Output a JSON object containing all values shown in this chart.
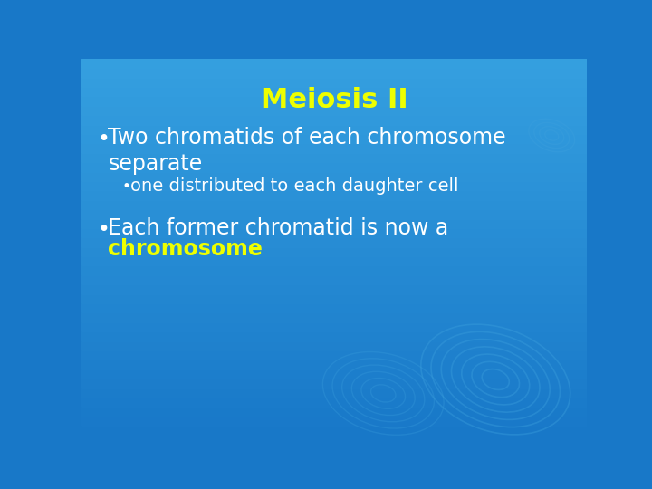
{
  "title": "Meiosis II",
  "title_color": "#EEFF00",
  "title_fontsize": 22,
  "title_fontweight": "bold",
  "bg_color": "#1878C8",
  "bg_color_top": "#1878C8",
  "bg_color_bottom": "#3399DD",
  "bullet1_text": "Two chromatids of each chromosome\nseparate",
  "bullet1_color": "#FFFFFF",
  "bullet1_fontsize": 17,
  "sub_bullet_text": "one distributed to each daughter cell",
  "sub_bullet_color": "#FFFFFF",
  "sub_bullet_fontsize": 14,
  "bullet2_line1": "Each former chromatid is now a",
  "bullet2_line2": "chromosome",
  "bullet2_color": "#FFFFFF",
  "bullet2_highlight_color": "#EEFF00",
  "bullet2_fontsize": 17,
  "bullet_color": "#FFFFFF",
  "ring_color": "#3B9FDD",
  "ring_alpha": 0.45
}
